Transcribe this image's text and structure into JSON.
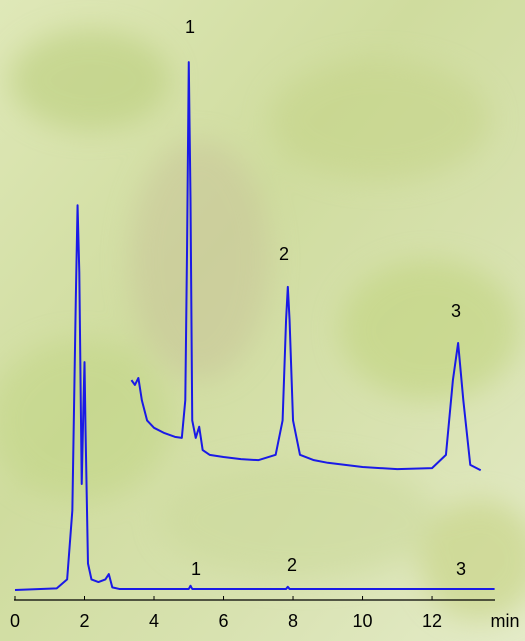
{
  "chart_data": {
    "type": "line",
    "x_label": "min",
    "xlim": [
      0,
      13.8
    ],
    "xticks": [
      0,
      2,
      4,
      6,
      8,
      10,
      12
    ],
    "ylim": [
      0,
      100
    ],
    "annotations": [
      "1",
      "2",
      "3",
      "1",
      "2",
      "3"
    ],
    "series": [
      {
        "color": "#1a1ae6",
        "x": [
          0,
          1.2,
          1.5,
          1.65,
          1.75,
          1.8,
          1.85,
          1.92,
          1.97,
          2.0,
          2.03,
          2.1,
          2.2,
          2.4,
          2.6,
          2.7,
          2.8,
          3.0,
          5.0,
          5.05,
          5.1,
          7.8,
          7.85,
          7.9,
          12.7,
          13.8
        ],
        "values": [
          0,
          0.3,
          2,
          15,
          55,
          72.6,
          60,
          20,
          35,
          43,
          30,
          5,
          2,
          1.5,
          2,
          3,
          0.5,
          0.2,
          0.2,
          0.8,
          0.2,
          0.2,
          0.6,
          0.2,
          0.2,
          0.2
        ]
      },
      {
        "color": "#1a1ae6",
        "x": [
          3.35,
          3.45,
          3.55,
          3.65,
          3.8,
          4.0,
          4.3,
          4.6,
          4.8,
          4.9,
          4.95,
          5.0,
          5.05,
          5.1,
          5.2,
          5.3,
          5.4,
          5.6,
          6.0,
          6.5,
          7.0,
          7.5,
          7.7,
          7.8,
          7.85,
          7.9,
          8.0,
          8.2,
          8.6,
          9.0,
          10.0,
          11.0,
          12.0,
          12.4,
          12.6,
          12.75,
          12.9,
          13.1,
          13.4
        ],
        "values": [
          39.6,
          38.7,
          40,
          35.8,
          32,
          30.6,
          29.6,
          28.9,
          28.7,
          35.8,
          64,
          99.6,
          73.6,
          32,
          28.7,
          30.8,
          26.4,
          25.5,
          25.1,
          24.7,
          24.5,
          25.5,
          32,
          51,
          57.2,
          51,
          32,
          25.5,
          24.5,
          24,
          23.2,
          22.8,
          23,
          25.5,
          39.6,
          46.6,
          35.8,
          23.6,
          22.6
        ]
      }
    ]
  }
}
